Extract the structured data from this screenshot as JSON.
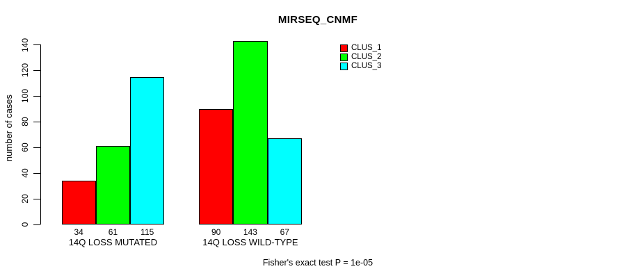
{
  "chart_data": {
    "type": "bar",
    "title": "MIRSEQ_CNMF",
    "ylabel": "number of cases",
    "xlabel": "",
    "categories": [
      "14Q LOSS MUTATED",
      "14Q LOSS WILD-TYPE"
    ],
    "series": [
      {
        "name": "CLUS_1",
        "color": "#ff0000",
        "values": [
          34,
          90
        ]
      },
      {
        "name": "CLUS_2",
        "color": "#00ff00",
        "values": [
          61,
          143
        ]
      },
      {
        "name": "CLUS_3",
        "color": "#00ffff",
        "values": [
          115,
          67
        ]
      }
    ],
    "yticks": [
      0,
      20,
      40,
      60,
      80,
      100,
      120,
      140
    ],
    "ylim": [
      0,
      140
    ],
    "grid": false,
    "bar_value_labels_shown": true,
    "legend_position": "top-right",
    "annotation": "Fisher's exact test P = 1e-05",
    "axis_color": "#000000",
    "bar_border_color": "#000000",
    "background_color": "#ffffff",
    "text_color": "#000000"
  }
}
